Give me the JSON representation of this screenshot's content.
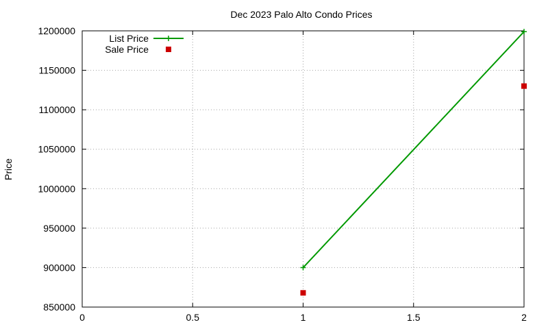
{
  "chart_data": {
    "type": "line",
    "title": "Dec 2023 Palo Alto Condo Prices",
    "xlabel": "",
    "ylabel": "Price",
    "xlim": [
      0,
      2
    ],
    "ylim": [
      850000,
      1200000
    ],
    "xticks": [
      0,
      0.5,
      1,
      1.5,
      2
    ],
    "xtick_labels": [
      "0",
      "0.5",
      "1",
      "1.5",
      "2"
    ],
    "yticks": [
      850000,
      900000,
      950000,
      1000000,
      1050000,
      1100000,
      1150000,
      1200000
    ],
    "ytick_labels": [
      "850000",
      "900000",
      "950000",
      "1000000",
      "1050000",
      "1100000",
      "1150000",
      "1200000"
    ],
    "grid": true,
    "legend_position": "top-left",
    "series": [
      {
        "name": "List Price",
        "style": "line-plus",
        "color": "#009900",
        "x": [
          1,
          2
        ],
        "y": [
          900000,
          1199000
        ]
      },
      {
        "name": "Sale Price",
        "style": "square",
        "color": "#cc0000",
        "x": [
          1,
          2
        ],
        "y": [
          868000,
          1130000
        ]
      }
    ]
  }
}
